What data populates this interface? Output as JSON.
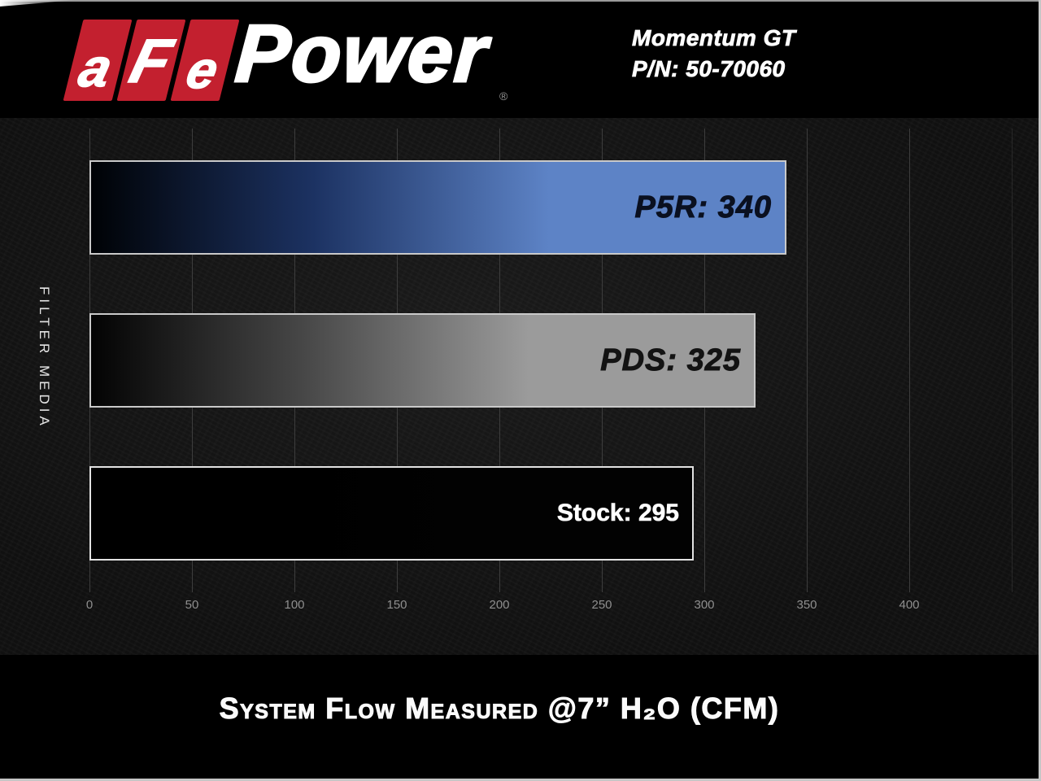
{
  "header": {
    "logo": {
      "letters": [
        "a",
        "F",
        "e"
      ],
      "word": "Power",
      "reg": "®",
      "brand_red": "#c3202f"
    },
    "product": "Momentum GT",
    "part_number": "P/N: 50-70060"
  },
  "chart_data": {
    "type": "bar",
    "orientation": "horizontal",
    "title": "System Flow Measured @7” H₂O (CFM)",
    "ylabel": "FILTER MEDIA",
    "categories": [
      "P5R",
      "PDS",
      "Stock"
    ],
    "values": [
      340,
      325,
      295
    ],
    "x_ticks": [
      0,
      50,
      100,
      150,
      200,
      250,
      300,
      350,
      400
    ],
    "tick_step": 50,
    "xlim": [
      0,
      450
    ],
    "grid": true,
    "legend": "none",
    "bars": [
      {
        "name": "P5R",
        "value": 340,
        "label": "P5R: 340",
        "color_start": "#000205",
        "color_mid": "#1c3262",
        "color_end": "#5d83c6",
        "label_color": "#0a1020"
      },
      {
        "name": "PDS",
        "value": 325,
        "label": "PDS: 325",
        "color_start": "#030303",
        "color_mid": "#474747",
        "color_end": "#9b9b9b",
        "label_color": "#131313"
      },
      {
        "name": "Stock",
        "value": 295,
        "label": "Stock: 295",
        "color_start": "#000000",
        "color_mid": "#000000",
        "color_end": "#020202",
        "label_color": "#ffffff"
      }
    ],
    "gridline_color": "#3d3d3d",
    "tick_color": "#8f8f8f"
  }
}
